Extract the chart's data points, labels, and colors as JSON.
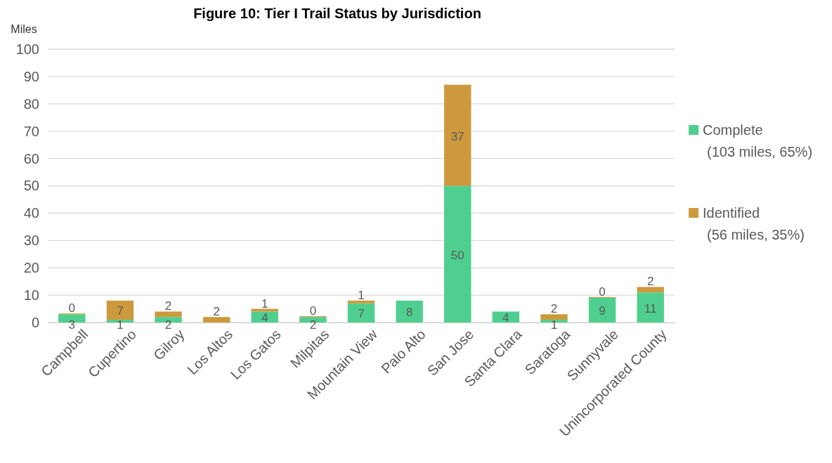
{
  "chart_data": {
    "type": "bar",
    "title": "Figure 10: Tier I Trail Status by Jurisdiction",
    "ylabel": "Miles",
    "categories": [
      "Campbell",
      "Cupertino",
      "Gilroy",
      "Los Altos",
      "Los Gatos",
      "Milpitas",
      "Mountain View",
      "Palo Alto",
      "San Jose",
      "Santa Clara",
      "Saratoga",
      "Sunnyvale",
      "Unincorporated County"
    ],
    "series": [
      {
        "name": "Complete (103 miles, 65%)",
        "color": "#4fcf8f",
        "values": [
          3,
          1,
          2,
          null,
          4,
          2,
          7,
          8,
          50,
          4,
          1,
          9,
          11
        ],
        "value_labels": [
          "3",
          "1",
          "2",
          null,
          "4",
          "2",
          "7",
          "8",
          "50",
          "4",
          "1",
          "9",
          "11"
        ]
      },
      {
        "name": "Identified (56 miles, 35%)",
        "color": "#cc9a3c",
        "values": [
          0.3,
          7,
          2,
          2,
          1,
          0.3,
          1,
          null,
          37,
          null,
          2,
          0.3,
          2
        ],
        "value_labels": [
          "0",
          "7",
          "2",
          "2",
          "1",
          "0",
          "1",
          null,
          "37",
          null,
          "2",
          "0",
          "2"
        ]
      }
    ],
    "stacked": true,
    "ylim": [
      0,
      100
    ],
    "yticks": [
      0,
      10,
      20,
      30,
      40,
      50,
      60,
      70,
      80,
      90,
      100
    ],
    "grid": "y",
    "legend": "right"
  }
}
